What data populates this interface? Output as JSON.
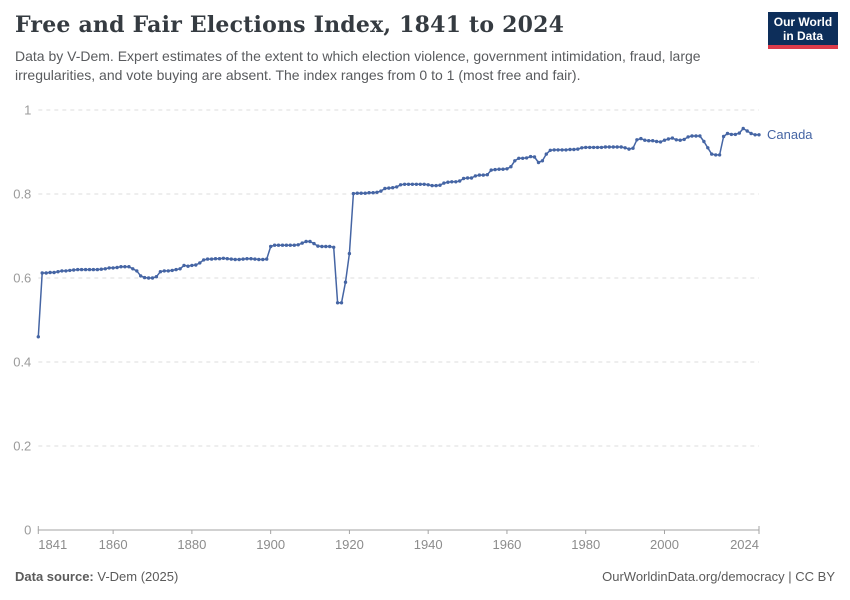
{
  "header": {
    "title": "Free and Fair Elections Index, 1841 to 2024",
    "subtitle": "Data by V-Dem. Expert estimates of the extent to which election violence, government intimidation, fraud, large irregularities, and vote buying are absent. The index ranges from 0 to 1 (most free and fair).",
    "logo_line1": "Our World",
    "logo_line2": "in Data"
  },
  "chart_data": {
    "type": "line",
    "title": "Free and Fair Elections Index, 1841 to 2024",
    "xlabel": "",
    "ylabel": "",
    "xlim": [
      1841,
      2024
    ],
    "ylim": [
      0,
      1
    ],
    "x_ticks": [
      1841,
      1860,
      1880,
      1900,
      1920,
      1940,
      1960,
      1980,
      2000,
      2024
    ],
    "y_ticks": [
      1,
      0.8,
      0.6,
      0.4,
      0.2,
      0
    ],
    "grid": "horizontal-dashed",
    "legend": "end-of-line-label",
    "marker": "dot-every-year",
    "series": [
      {
        "name": "Canada",
        "color": "#4565a4",
        "start_year": 1841,
        "values": [
          0.46,
          0.612,
          0.612,
          0.613,
          0.613,
          0.615,
          0.617,
          0.617,
          0.618,
          0.619,
          0.62,
          0.62,
          0.62,
          0.62,
          0.62,
          0.62,
          0.621,
          0.622,
          0.624,
          0.624,
          0.625,
          0.627,
          0.627,
          0.627,
          0.622,
          0.617,
          0.605,
          0.601,
          0.6,
          0.6,
          0.603,
          0.615,
          0.617,
          0.617,
          0.618,
          0.62,
          0.622,
          0.63,
          0.628,
          0.63,
          0.631,
          0.636,
          0.643,
          0.645,
          0.645,
          0.646,
          0.646,
          0.647,
          0.646,
          0.645,
          0.644,
          0.644,
          0.645,
          0.646,
          0.646,
          0.645,
          0.644,
          0.644,
          0.645,
          0.675,
          0.678,
          0.678,
          0.678,
          0.678,
          0.678,
          0.678,
          0.679,
          0.683,
          0.687,
          0.687,
          0.682,
          0.676,
          0.675,
          0.675,
          0.675,
          0.673,
          0.541,
          0.541,
          0.59,
          0.658,
          0.801,
          0.802,
          0.802,
          0.802,
          0.803,
          0.803,
          0.804,
          0.807,
          0.813,
          0.814,
          0.815,
          0.817,
          0.822,
          0.823,
          0.823,
          0.823,
          0.823,
          0.823,
          0.823,
          0.822,
          0.82,
          0.82,
          0.821,
          0.826,
          0.828,
          0.829,
          0.829,
          0.831,
          0.837,
          0.838,
          0.838,
          0.843,
          0.845,
          0.845,
          0.846,
          0.857,
          0.858,
          0.859,
          0.859,
          0.86,
          0.865,
          0.879,
          0.885,
          0.885,
          0.886,
          0.889,
          0.888,
          0.875,
          0.879,
          0.895,
          0.904,
          0.905,
          0.905,
          0.905,
          0.905,
          0.906,
          0.906,
          0.907,
          0.91,
          0.911,
          0.911,
          0.911,
          0.911,
          0.911,
          0.912,
          0.912,
          0.912,
          0.912,
          0.912,
          0.91,
          0.907,
          0.909,
          0.929,
          0.932,
          0.928,
          0.927,
          0.927,
          0.925,
          0.924,
          0.928,
          0.931,
          0.933,
          0.929,
          0.928,
          0.93,
          0.936,
          0.938,
          0.938,
          0.938,
          0.925,
          0.91,
          0.895,
          0.893,
          0.893,
          0.937,
          0.944,
          0.942,
          0.942,
          0.945,
          0.956,
          0.95,
          0.944,
          0.941,
          0.941
        ]
      }
    ]
  },
  "footer": {
    "source_label": "Data source:",
    "source_value": " V-Dem (2025)",
    "right_text": "OurWorldinData.org/democracy | CC BY"
  }
}
